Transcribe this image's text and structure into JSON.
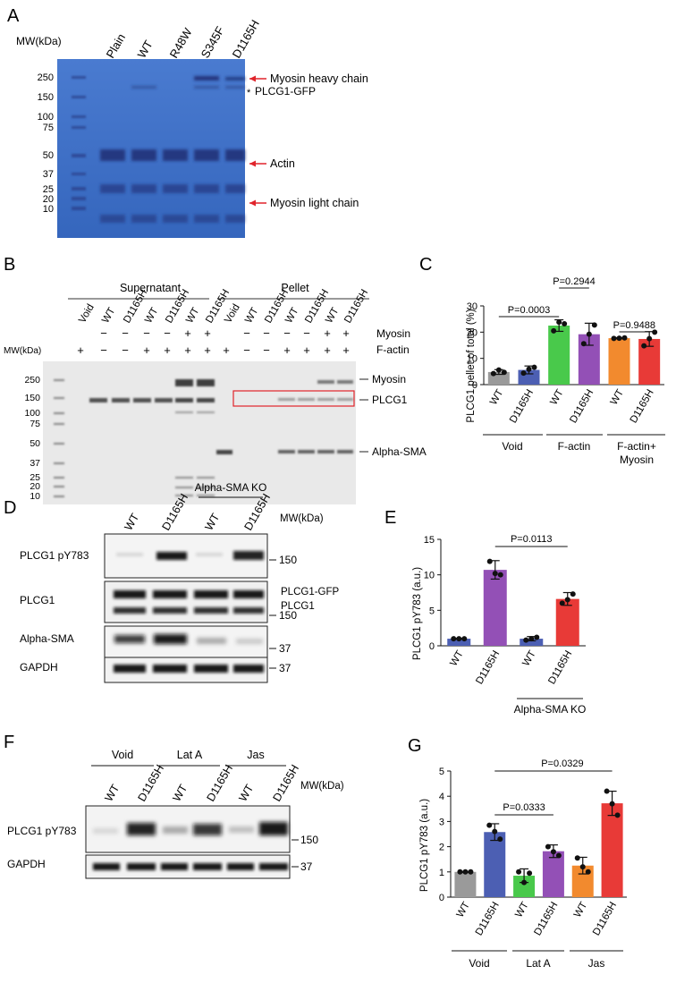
{
  "panel_letters": {
    "a": "A",
    "b": "B",
    "c": "C",
    "d": "D",
    "e": "E",
    "f": "F",
    "g": "G"
  },
  "panel_a": {
    "mw_header": "MW(kDa)",
    "lanes": [
      "Plain",
      "WT",
      "R48W",
      "S345F",
      "D1165H"
    ],
    "mw_markers": [
      "250",
      "150",
      "100",
      "75",
      "50",
      "37",
      "25",
      "20",
      "10"
    ],
    "annotations": {
      "myosin_heavy": "Myosin heavy chain",
      "plcg1_gfp": "PLCG1-GFP",
      "star": "*",
      "actin": "Actin",
      "myosin_light": "Myosin light chain"
    },
    "colors": {
      "gel": "#3d6fc4",
      "arrow": "#e0242b"
    }
  },
  "panel_b": {
    "group_supernatant": "Supernatant",
    "group_pellet": "Pellet",
    "lanes": [
      "Void",
      "WT",
      "D1165H",
      "WT",
      "D1165H",
      "WT",
      "D1165H",
      "Void",
      "WT",
      "D1165H",
      "WT",
      "D1165H",
      "WT",
      "D1165H"
    ],
    "myosin_row": [
      "",
      "−",
      "−",
      "−",
      "−",
      "+",
      "+",
      "",
      "−",
      "−",
      "−",
      "−",
      "+",
      "+"
    ],
    "factin_row": [
      "+",
      "−",
      "−",
      "+",
      "+",
      "+",
      "+",
      "+",
      "−",
      "−",
      "+",
      "+",
      "+",
      "+"
    ],
    "row_label_myosin": "Myosin",
    "row_label_factin": "F-actin",
    "mw_header": "MW(kDa)",
    "mw_markers": [
      "250",
      "150",
      "100",
      "75",
      "50",
      "37",
      "25",
      "20",
      "10"
    ],
    "annotations": {
      "myosin": "Myosin",
      "plcg1": "PLCG1",
      "alpha_sma": "Alpha-SMA"
    }
  },
  "panel_c": {
    "ylabel": "PLCG1 pellet of total (%)",
    "yticks": [
      "0",
      "10",
      "20",
      "30"
    ],
    "pvalues": [
      "P=0.0003",
      "P=0.2944",
      "P=0.9488"
    ],
    "groups": [
      "Void",
      "F-actin",
      "F-actin+",
      "Myosin"
    ],
    "chart_data": {
      "type": "bar",
      "categories": [
        "WT",
        "D1165H",
        "WT",
        "D1165H",
        "WT",
        "D1165H"
      ],
      "values": [
        4.8,
        5.6,
        22.5,
        19.2,
        17.7,
        17.4
      ],
      "errors": [
        0.9,
        1.5,
        2.2,
        4.2,
        0.2,
        2.8
      ],
      "points": [
        [
          4.2,
          5.6,
          4.7
        ],
        [
          4.4,
          5.9,
          6.6
        ],
        [
          20.5,
          23.8,
          23.2
        ],
        [
          15.6,
          19.2,
          22.7
        ],
        [
          17.6,
          17.7,
          17.8
        ],
        [
          14.8,
          17.5,
          20.0
        ]
      ],
      "colors": [
        "#9a9a9a",
        "#4c5fb3",
        "#49c94b",
        "#9350b6",
        "#f28a2e",
        "#e83a37"
      ],
      "ylim": [
        0,
        30
      ]
    }
  },
  "panel_d": {
    "group_label": "Alpha-SMA KO",
    "lanes": [
      "WT",
      "D1165H",
      "WT",
      "D1165H"
    ],
    "mw_header": "MW(kDa)",
    "rows": [
      "PLCG1 pY783",
      "PLCG1",
      "Alpha-SMA",
      "GAPDH"
    ],
    "mw_labels": [
      "150",
      "150",
      "37",
      "37"
    ],
    "right_labels": [
      "PLCG1-GFP",
      "PLCG1"
    ]
  },
  "panel_e": {
    "ylabel": "PLCG1 pY783 (a.u.)",
    "yticks": [
      "0",
      "5",
      "10",
      "15"
    ],
    "pvalue": "P=0.0113",
    "group_label": "Alpha-SMA KO",
    "chart_data": {
      "type": "bar",
      "categories": [
        "WT",
        "D1165H",
        "WT",
        "D1165H"
      ],
      "values": [
        1.0,
        10.7,
        1.0,
        6.6
      ],
      "errors": [
        0.05,
        1.3,
        0.3,
        0.9
      ],
      "points": [
        [
          1.0,
          1.0,
          1.0
        ],
        [
          11.9,
          10.2,
          10.0
        ],
        [
          0.8,
          1.0,
          1.2
        ],
        [
          6.0,
          6.5,
          7.3
        ]
      ],
      "colors": [
        "#4c5fb3",
        "#9350b6",
        "#4c5fb3",
        "#e83a37"
      ],
      "ylim": [
        0,
        15
      ]
    }
  },
  "panel_f": {
    "groups": [
      "Void",
      "Lat A",
      "Jas"
    ],
    "lanes": [
      "WT",
      "D1165H",
      "WT",
      "D1165H",
      "WT",
      "D1165H"
    ],
    "mw_header": "MW(kDa)",
    "rows": [
      "PLCG1 pY783",
      "GAPDH"
    ],
    "mw_labels": [
      "150",
      "37"
    ]
  },
  "panel_g": {
    "ylabel": "PLCG1 pY783 (a.u.)",
    "yticks": [
      "0",
      "1",
      "2",
      "3",
      "4",
      "5"
    ],
    "pvalues": [
      "P=0.0333",
      "P=0.0329"
    ],
    "groups": [
      "Void",
      "Lat A",
      "Jas"
    ],
    "chart_data": {
      "type": "bar",
      "categories": [
        "WT",
        "D1165H",
        "WT",
        "D1165H",
        "WT",
        "D1165H"
      ],
      "values": [
        1.0,
        2.58,
        0.85,
        1.82,
        1.25,
        3.72
      ],
      "errors": [
        0.02,
        0.33,
        0.27,
        0.25,
        0.33,
        0.48
      ],
      "points": [
        [
          1.0,
          1.0,
          1.0
        ],
        [
          2.85,
          2.6,
          2.3
        ],
        [
          1.0,
          0.58,
          0.95
        ],
        [
          2.0,
          1.8,
          1.65
        ],
        [
          1.55,
          1.2,
          1.0
        ],
        [
          4.2,
          3.7,
          3.25
        ]
      ],
      "colors": [
        "#9a9a9a",
        "#4c5fb3",
        "#49c94b",
        "#9350b6",
        "#f28a2e",
        "#e83a37"
      ],
      "ylim": [
        0,
        5
      ]
    }
  }
}
